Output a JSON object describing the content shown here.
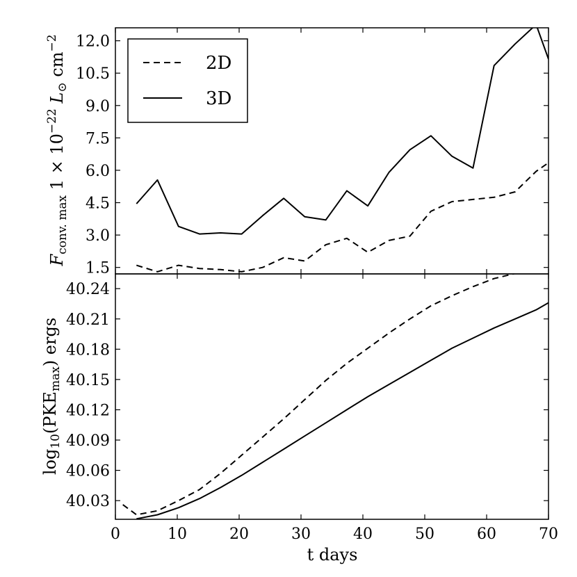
{
  "chart_data": [
    {
      "type": "line",
      "ylabel_parts": {
        "main": "F",
        "sub": "conv. max",
        "mid": " 1 × 10",
        "exp": "−22",
        "unit_L": " L",
        "unit_sun": "⊙",
        "unit_cm": " cm",
        "unit_exp": "−2"
      },
      "xlim": [
        0,
        70
      ],
      "ylim": [
        1.2,
        12.6
      ],
      "yticks": [
        1.5,
        3.0,
        4.5,
        6.0,
        7.5,
        9.0,
        10.5,
        12.0
      ],
      "ytick_labels": [
        "1.5",
        "3.0",
        "4.5",
        "6.0",
        "7.5",
        "9.0",
        "10.5",
        "12.0"
      ],
      "legend": {
        "position": "top-left",
        "entries": [
          "2D",
          "3D"
        ]
      },
      "series": [
        {
          "name": "2D",
          "style": "dashed",
          "x": [
            3.4,
            6.8,
            10.2,
            13.6,
            17.0,
            20.4,
            23.8,
            27.2,
            30.6,
            34.0,
            37.4,
            40.8,
            44.2,
            47.6,
            51.0,
            54.4,
            57.8,
            61.2,
            64.6,
            68.0,
            70.0
          ],
          "y": [
            1.6,
            1.3,
            1.6,
            1.45,
            1.4,
            1.3,
            1.5,
            1.95,
            1.8,
            2.55,
            2.85,
            2.2,
            2.75,
            2.95,
            4.1,
            4.55,
            4.65,
            4.75,
            5.0,
            5.95,
            6.35
          ]
        },
        {
          "name": "3D",
          "style": "solid",
          "x": [
            3.4,
            6.8,
            10.2,
            13.6,
            17.0,
            20.4,
            23.8,
            27.2,
            30.6,
            34.0,
            37.4,
            40.8,
            44.2,
            47.6,
            51.0,
            54.4,
            57.8,
            61.2,
            64.6,
            68.0,
            70.0
          ],
          "y": [
            4.45,
            5.55,
            3.4,
            3.05,
            3.1,
            3.05,
            3.9,
            4.7,
            3.85,
            3.7,
            5.05,
            4.35,
            5.9,
            6.95,
            7.6,
            6.65,
            6.1,
            10.85,
            11.85,
            12.75,
            11.15
          ]
        }
      ]
    },
    {
      "type": "line",
      "ylabel_parts": {
        "pre": "log",
        "sub": "10",
        "mid": "(PKE",
        "sub2": "max",
        "post": ") ergs"
      },
      "xlabel": "t days",
      "xlim": [
        0,
        70
      ],
      "ylim": [
        40.0115,
        40.2546
      ],
      "xticks": [
        0,
        10,
        20,
        30,
        40,
        50,
        60,
        70
      ],
      "xtick_labels": [
        "0",
        "10",
        "20",
        "30",
        "40",
        "50",
        "60",
        "70"
      ],
      "yticks": [
        40.03,
        40.06,
        40.09,
        40.12,
        40.15,
        40.18,
        40.21,
        40.24
      ],
      "ytick_labels": [
        "40.03",
        "40.06",
        "40.09",
        "40.12",
        "40.15",
        "40.18",
        "40.21",
        "40.24"
      ],
      "series": [
        {
          "name": "2D",
          "style": "dashed",
          "x": [
            1.2,
            3.4,
            6.8,
            10.2,
            13.6,
            17.0,
            20.4,
            23.8,
            27.2,
            30.6,
            34.0,
            37.4,
            40.8,
            44.2,
            47.6,
            51.0,
            54.4,
            57.8,
            61.2,
            64.6,
            68.0,
            70.0
          ],
          "y": [
            40.026,
            40.016,
            40.02,
            40.03,
            40.041,
            40.057,
            40.075,
            40.093,
            40.111,
            40.13,
            40.149,
            40.166,
            40.181,
            40.196,
            40.21,
            40.223,
            40.233,
            40.242,
            40.25,
            40.255,
            40.256,
            40.256
          ]
        },
        {
          "name": "3D",
          "style": "solid",
          "x": [
            3.4,
            6.8,
            10.2,
            13.6,
            17.0,
            20.4,
            23.8,
            27.2,
            30.6,
            34.0,
            37.4,
            40.8,
            44.2,
            47.6,
            51.0,
            54.4,
            57.8,
            61.2,
            64.6,
            68.0,
            70.0
          ],
          "y": [
            40.012,
            40.016,
            40.023,
            40.032,
            40.043,
            40.055,
            40.068,
            40.081,
            40.094,
            40.107,
            40.12,
            40.133,
            40.145,
            40.157,
            40.169,
            40.181,
            40.191,
            40.201,
            40.21,
            40.219,
            40.226
          ]
        }
      ]
    }
  ]
}
